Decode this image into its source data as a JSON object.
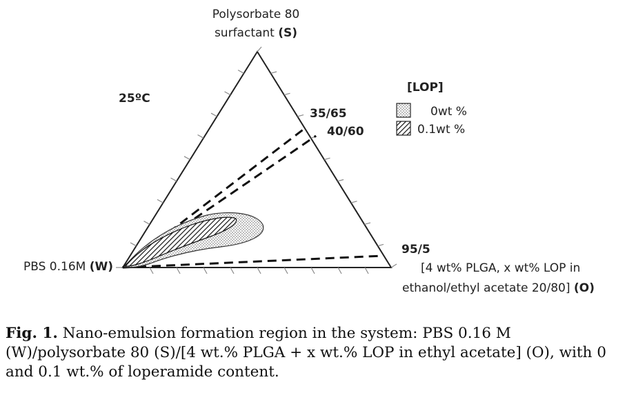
{
  "diagram": {
    "vertex_top": {
      "line1": "Polysorbate 80",
      "line2_text": "surfactant ",
      "line2_bold": "(S)"
    },
    "vertex_left": {
      "text": "PBS 0.16M ",
      "bold": "(W)"
    },
    "vertex_right": {
      "line1": "[4 wt% PLGA, x wt% LOP in",
      "line2_text": "ethanol/ethyl acetate 20/80] ",
      "line2_bold": "(O)"
    },
    "temperature": "25ºC",
    "ratios": [
      "35/65",
      "40/60",
      "95/5"
    ],
    "legend": {
      "title": "[LOP]",
      "items": [
        {
          "label": "0wt %",
          "pattern": "dotted"
        },
        {
          "label": "0.1wt %",
          "pattern": "hatched"
        }
      ]
    }
  },
  "caption": {
    "label": "Fig. 1.",
    "text": " Nano-emulsion formation region in the system: PBS 0.16 M (W)/polysorbate 80 (S)/[4 wt.% PLGA + x wt.% LOP in ethyl acetate] (O), with 0 and 0.1 wt.% of loperamide content."
  }
}
